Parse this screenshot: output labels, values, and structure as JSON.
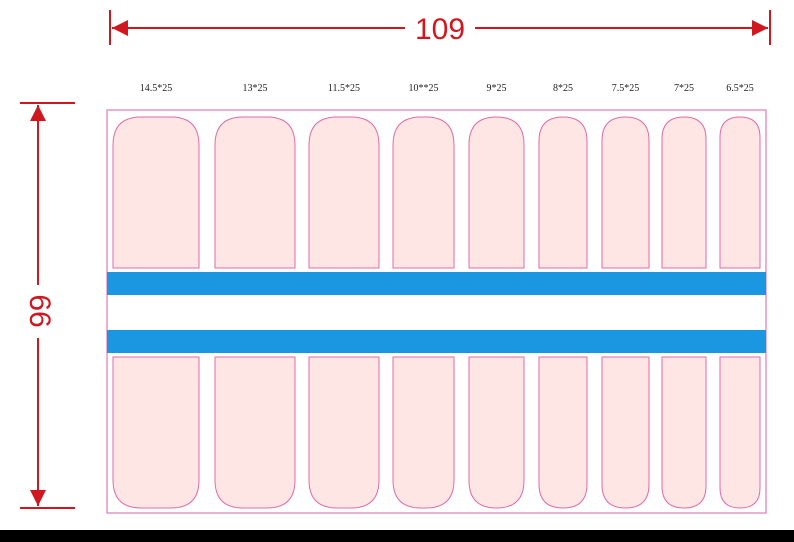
{
  "dimensions": {
    "width": "109",
    "height": "66"
  },
  "nails": [
    "14.5*25",
    "13*25",
    "11.5*25",
    "10**25",
    "9*25",
    "8*25",
    "7.5*25",
    "7*25",
    "6.5*25"
  ]
}
